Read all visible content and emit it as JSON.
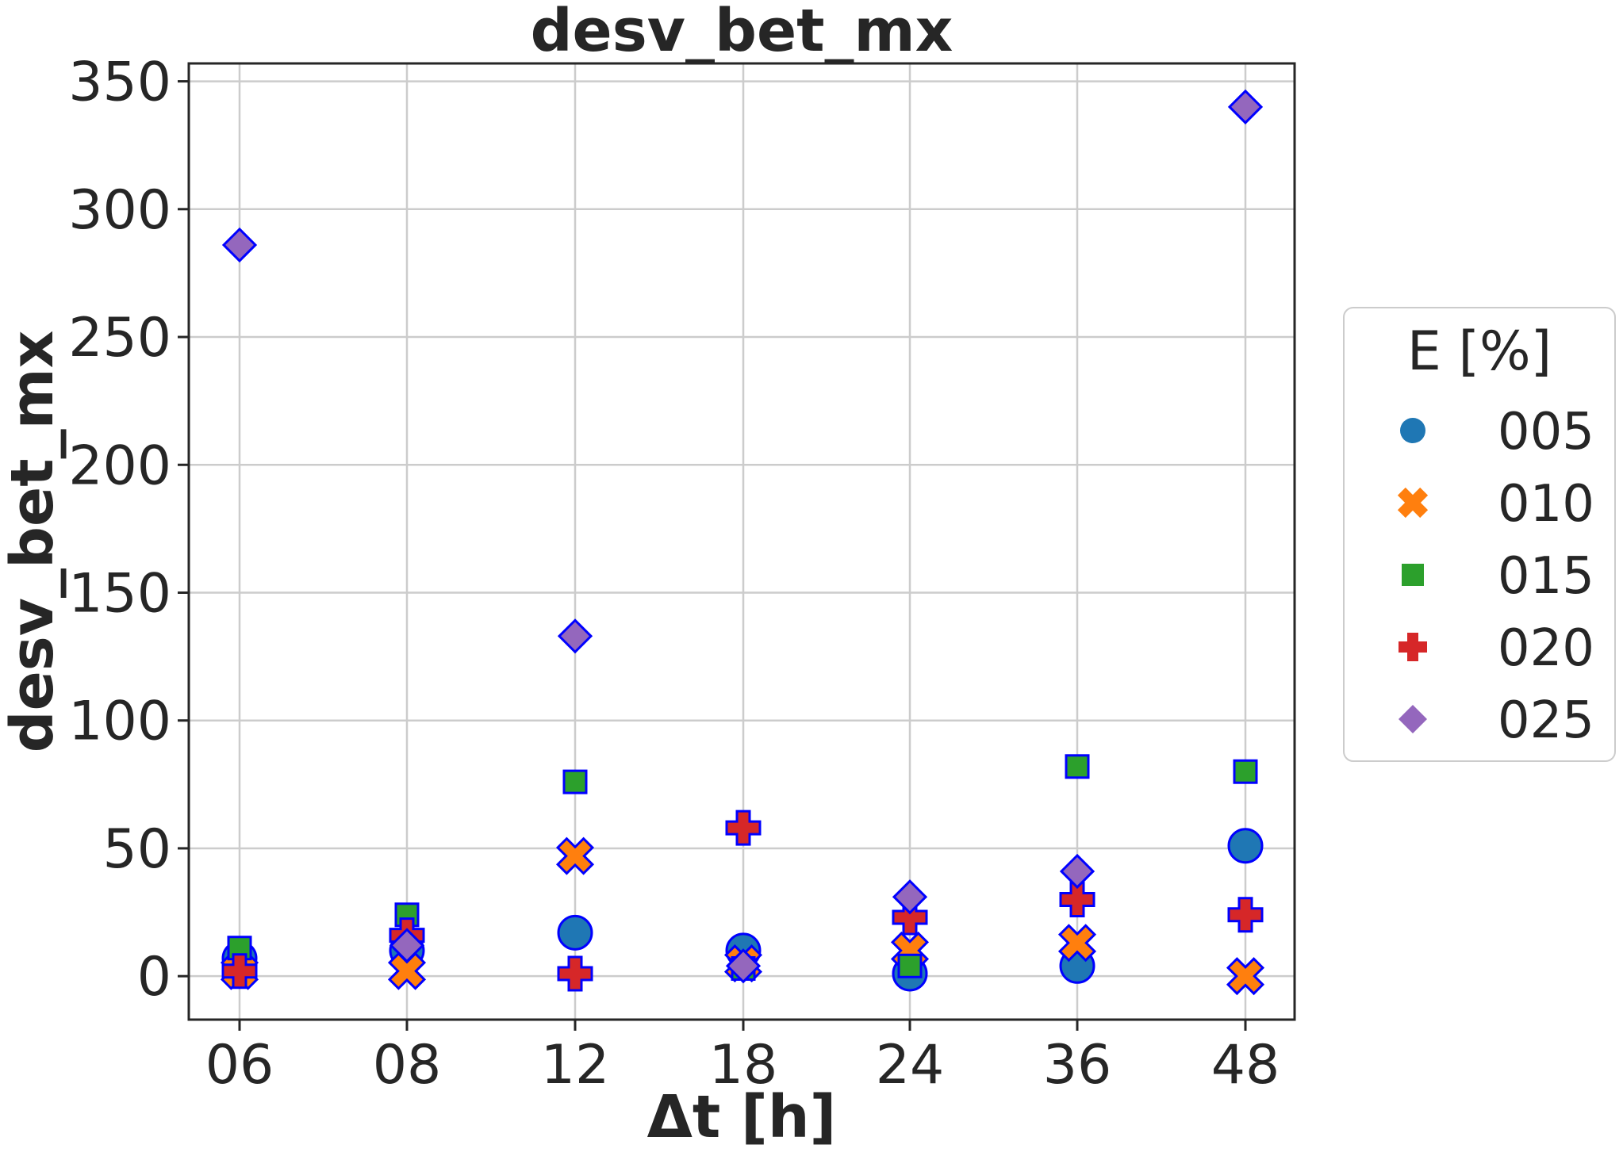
{
  "chart_data": {
    "type": "scatter",
    "title": "desv_bet_mx",
    "xlabel": "Δt [h]",
    "ylabel": "desv_bet_mx",
    "categories": [
      "06",
      "08",
      "12",
      "18",
      "24",
      "36",
      "48"
    ],
    "yticks": [
      0,
      50,
      100,
      150,
      200,
      250,
      300,
      350
    ],
    "ylim": [
      -17,
      357
    ],
    "grid": true,
    "legend": {
      "title": "E [%]",
      "position": "right"
    },
    "series": [
      {
        "name": "005",
        "marker": "circle",
        "color": "#1f77b4",
        "values": [
          7,
          10,
          17,
          10,
          1,
          4,
          51
        ]
      },
      {
        "name": "010",
        "marker": "x",
        "color": "#ff7f0e",
        "values": [
          2,
          2,
          47,
          5,
          10,
          13,
          0
        ]
      },
      {
        "name": "015",
        "marker": "square",
        "color": "#2ca02c",
        "values": [
          11,
          24,
          76,
          3,
          4,
          82,
          80
        ]
      },
      {
        "name": "020",
        "marker": "plus",
        "color": "#d62728",
        "values": [
          2,
          16,
          1,
          58,
          23,
          30,
          24
        ]
      },
      {
        "name": "025",
        "marker": "diamond",
        "color": "#9467bd",
        "values": [
          286,
          12,
          133,
          4,
          31,
          41,
          340
        ]
      }
    ],
    "marker_edge_color": "#0000ff"
  }
}
